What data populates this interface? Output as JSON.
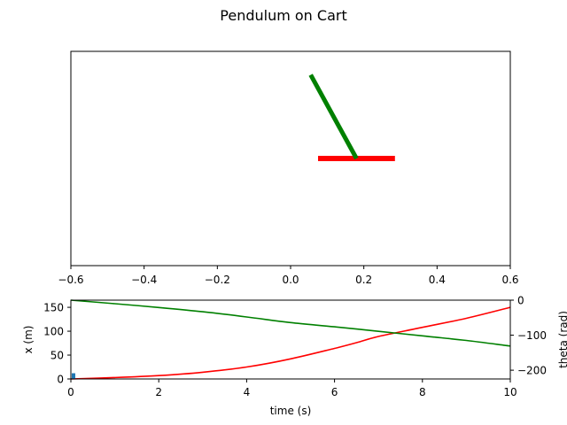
{
  "figure": {
    "title": "Pendulum on Cart"
  },
  "chart_data": [
    {
      "type": "line",
      "panel": "animation",
      "title": "",
      "xlim": [
        -0.6,
        0.6
      ],
      "xticks": [
        -0.6,
        -0.4,
        -0.2,
        0.0,
        0.2,
        0.4,
        0.6
      ],
      "xtick_labels": [
        "−0.6",
        "−0.4",
        "−0.2",
        "0.0",
        "0.2",
        "0.4",
        "0.6"
      ],
      "ylim": [
        -1,
        1
      ],
      "yticks_visible": false,
      "grid": false,
      "series": [
        {
          "role": "cart",
          "color": "#ff0000",
          "x": [
            0.075,
            0.285
          ],
          "y": [
            0.0,
            0.0
          ]
        },
        {
          "role": "pendulum",
          "color": "#008000",
          "x": [
            0.18,
            0.055
          ],
          "y": [
            0.0,
            0.78
          ]
        }
      ]
    },
    {
      "type": "line",
      "panel": "timeseries",
      "xlabel": "time (s)",
      "ylabel": "x (m)",
      "ylabel_right": "theta (rad)",
      "xlim": [
        0,
        10
      ],
      "xticks": [
        0,
        2,
        4,
        6,
        8,
        10
      ],
      "ylim": [
        0,
        165
      ],
      "yticks": [
        0,
        50,
        100,
        150
      ],
      "ylim_right": [
        -225,
        0
      ],
      "yticks_right": [
        -200,
        -100,
        0
      ],
      "yticks_right_labels": [
        "−200",
        "−100",
        "0"
      ],
      "grid": false,
      "series": [
        {
          "role": "x",
          "axis": "left",
          "color": "#ff0000",
          "x": [
            0,
            1,
            2,
            3,
            4,
            5,
            6,
            6.5,
            7,
            8,
            9,
            10
          ],
          "y": [
            0,
            3,
            7,
            14,
            25,
            42,
            64,
            76,
            89,
            108,
            127,
            150
          ]
        },
        {
          "role": "theta",
          "axis": "right",
          "color": "#008000",
          "x": [
            0,
            1,
            2,
            3,
            4,
            5,
            6,
            7,
            8,
            9,
            10
          ],
          "y": [
            0,
            -10,
            -21,
            -33,
            -48,
            -64,
            -76,
            -89,
            -102,
            -115,
            -131
          ]
        },
        {
          "role": "time-marker",
          "type": "bar",
          "axis": "left",
          "color": "#1f77b4",
          "x": [
            0.06
          ],
          "y": [
            12
          ]
        }
      ]
    }
  ]
}
